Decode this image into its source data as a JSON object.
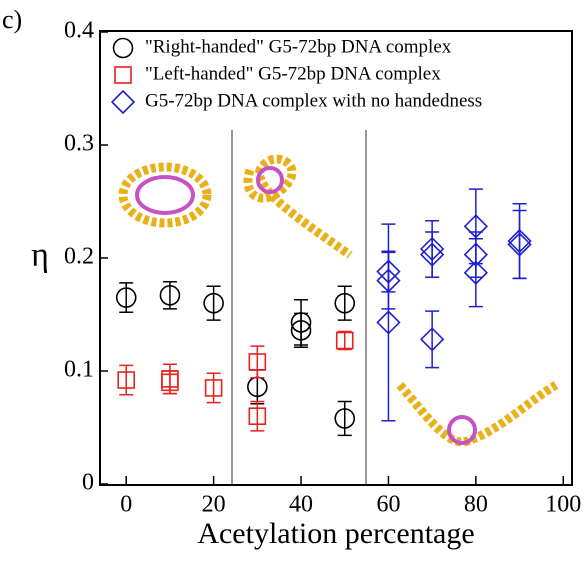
{
  "chart_data": {
    "type": "scatter",
    "panel_label": "c)",
    "xlabel": "Acetylation percentage",
    "ylabel": "η",
    "xlim": [
      -6,
      102
    ],
    "ylim": [
      0,
      0.4
    ],
    "xticks": [
      0,
      20,
      40,
      60,
      80,
      100
    ],
    "yticks": [
      0,
      0.1,
      0.2,
      0.3,
      0.4
    ],
    "legend": "upper left",
    "series": [
      {
        "name": "\"Right-handed\" G5-72bp DNA complex",
        "color": "#000000",
        "marker": "circle",
        "x": [
          0,
          10,
          20,
          30,
          40,
          40,
          50,
          50
        ],
        "values": [
          0.165,
          0.167,
          0.16,
          0.086,
          0.143,
          0.136,
          0.16,
          0.058
        ],
        "errors": [
          0.013,
          0.012,
          0.015,
          0.015,
          0.02,
          0.015,
          0.015,
          0.015
        ]
      },
      {
        "name": "\"Left-handed\" G5-72bp DNA complex",
        "color": "#e8211d",
        "marker": "square",
        "x": [
          0,
          10,
          10,
          20,
          30,
          30,
          50
        ],
        "values": [
          0.092,
          0.093,
          0.09,
          0.085,
          0.108,
          0.06,
          0.127
        ],
        "errors": [
          0.013,
          0.013,
          0.01,
          0.013,
          0.014,
          0.013,
          0.008
        ]
      },
      {
        "name": "G5-72bp DNA complex with no handedness",
        "color": "#1f1fd0",
        "marker": "diamond",
        "x": [
          60,
          60,
          60,
          70,
          70,
          70,
          80,
          80,
          80,
          90,
          90
        ],
        "values": [
          0.188,
          0.18,
          0.143,
          0.208,
          0.203,
          0.128,
          0.228,
          0.203,
          0.187,
          0.215,
          0.212
        ],
        "errors": [
          0.018,
          0.025,
          0.087,
          0.025,
          0.02,
          0.025,
          0.033,
          0.02,
          0.03,
          0.033,
          0.03
        ]
      }
    ]
  }
}
